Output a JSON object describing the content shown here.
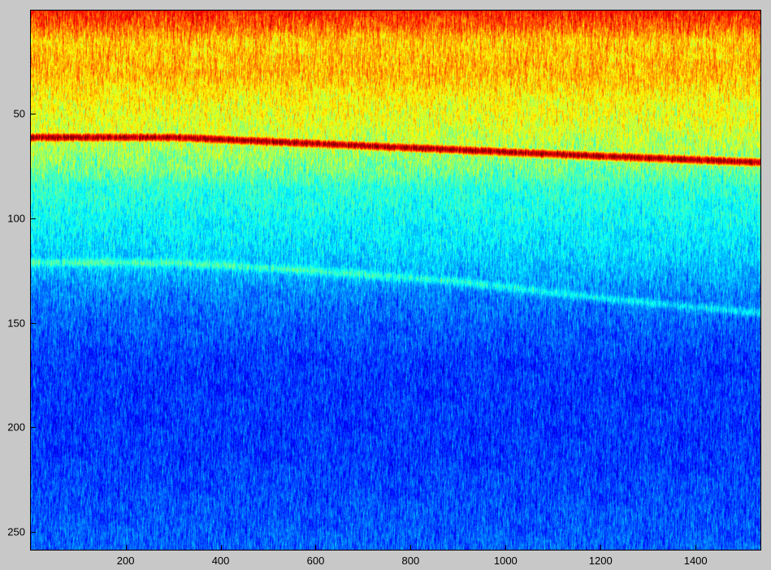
{
  "chart_data": {
    "type": "heatmap",
    "title": "",
    "xlabel": "",
    "ylabel": "",
    "colormap": "jet",
    "xlim": [
      0.5,
      1536.5
    ],
    "ylim": [
      0.5,
      258.5
    ],
    "y_reversed": true,
    "grid": false,
    "x_ticks": [
      200,
      400,
      600,
      800,
      1000,
      1200,
      1400
    ],
    "y_ticks": [
      50,
      100,
      150,
      200,
      250
    ],
    "row_mean_intensity": [
      {
        "y": 1,
        "v": 0.85
      },
      {
        "y": 8,
        "v": 0.78
      },
      {
        "y": 15,
        "v": 0.68
      },
      {
        "y": 30,
        "v": 0.7
      },
      {
        "y": 45,
        "v": 0.62
      },
      {
        "y": 55,
        "v": 0.6
      },
      {
        "y": 75,
        "v": 0.5
      },
      {
        "y": 85,
        "v": 0.42
      },
      {
        "y": 100,
        "v": 0.38
      },
      {
        "y": 120,
        "v": 0.33
      },
      {
        "y": 140,
        "v": 0.24
      },
      {
        "y": 170,
        "v": 0.18
      },
      {
        "y": 210,
        "v": 0.18
      },
      {
        "y": 258,
        "v": 0.22
      }
    ],
    "strong_ridge": {
      "x": [
        1,
        300,
        600,
        900,
        1200,
        1536
      ],
      "y": [
        61,
        61,
        64,
        67,
        70,
        73
      ],
      "v": 0.97
    },
    "faint_ridge": {
      "x": [
        1,
        300,
        600,
        900,
        1200,
        1536
      ],
      "y": [
        121,
        121,
        125,
        130,
        138,
        145
      ],
      "v": 0.45
    },
    "upper_bands": {
      "y": [
        3,
        30
      ],
      "v": 0.9
    }
  }
}
